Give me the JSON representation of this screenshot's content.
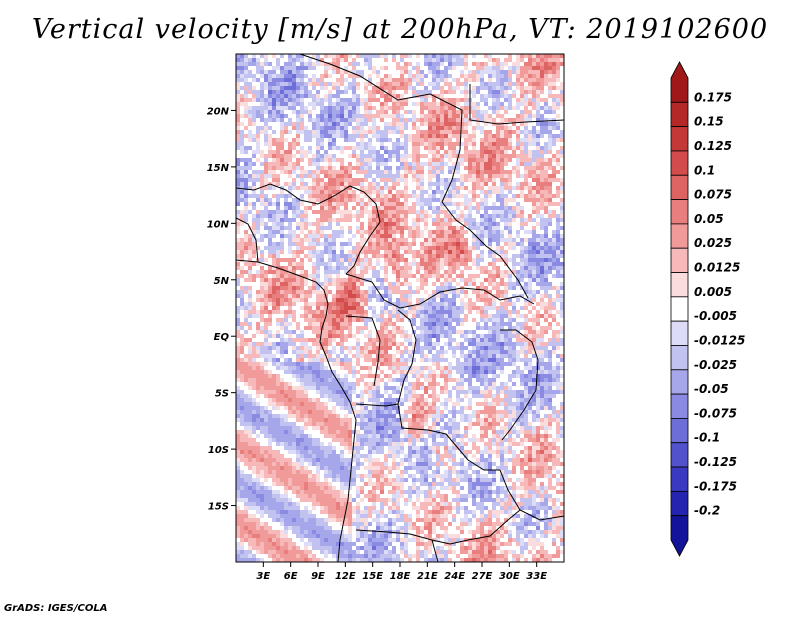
{
  "title": "Vertical velocity [m/s] at 200hPa, VT: 2019102600",
  "footer": "GrADS: IGES/COLA",
  "map": {
    "lon_range": [
      0,
      36
    ],
    "lat_range": [
      -20,
      25
    ],
    "lon_ticks": [
      "3E",
      "6E",
      "9E",
      "12E",
      "15E",
      "18E",
      "21E",
      "24E",
      "27E",
      "30E",
      "33E"
    ],
    "lon_tick_values": [
      3,
      6,
      9,
      12,
      15,
      18,
      21,
      24,
      27,
      30,
      33
    ],
    "lat_ticks": [
      "20N",
      "15N",
      "10N",
      "5N",
      "EQ",
      "5S",
      "10S",
      "15S"
    ],
    "lat_tick_values": [
      20,
      15,
      10,
      5,
      0,
      -5,
      -10,
      -15
    ]
  },
  "colorbar": {
    "labels": [
      "0.175",
      "0.15",
      "0.125",
      "0.1",
      "0.075",
      "0.05",
      "0.025",
      "0.0125",
      "0.005",
      "-0.005",
      "-0.0125",
      "-0.025",
      "-0.05",
      "-0.075",
      "-0.1",
      "-0.125",
      "-0.175",
      "-0.2"
    ],
    "colors": [
      "#a01818",
      "#b42828",
      "#c43838",
      "#d24c4c",
      "#de6464",
      "#e87e7e",
      "#f09a9a",
      "#f6b8b8",
      "#fadcdc",
      "#ffffff",
      "#dcdcf6",
      "#c2c2f0",
      "#a6a6ea",
      "#8a8ae2",
      "#6e6ed8",
      "#5252cc",
      "#3a3ac0",
      "#2424b0",
      "#14149a"
    ]
  }
}
